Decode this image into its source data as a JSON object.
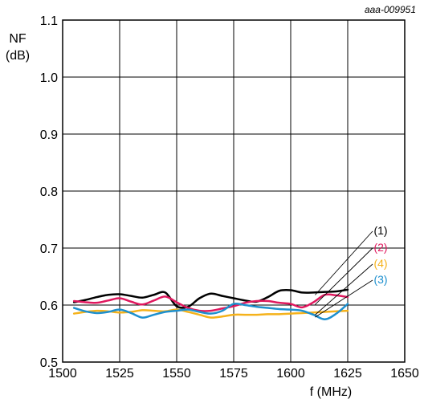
{
  "figure_id": "aaa-009951",
  "chart_data": {
    "type": "line",
    "xlabel": "f (MHz)",
    "ylabel_line1": "NF",
    "ylabel_line2": "(dB)",
    "xlim": [
      1500,
      1650
    ],
    "ylim": [
      0.5,
      1.1
    ],
    "x_ticks": [
      "1500",
      "1525",
      "1550",
      "1575",
      "1600",
      "1625",
      "1650"
    ],
    "y_ticks": [
      "0.5",
      "0.6",
      "0.7",
      "0.8",
      "0.9",
      "1.0",
      "1.1"
    ],
    "x_tick_values": [
      1500,
      1525,
      1550,
      1575,
      1600,
      1625,
      1650
    ],
    "y_tick_values": [
      0.5,
      0.6,
      0.7,
      0.8,
      0.9,
      1.0,
      1.1
    ],
    "grid": true,
    "series": [
      {
        "name": "(1)",
        "color": "#000000",
        "x": [
          1505,
          1510,
          1515,
          1520,
          1525,
          1530,
          1535,
          1540,
          1545,
          1550,
          1555,
          1560,
          1565,
          1570,
          1575,
          1580,
          1585,
          1590,
          1595,
          1600,
          1605,
          1610,
          1615,
          1620,
          1625
        ],
        "y": [
          0.605,
          0.609,
          0.614,
          0.618,
          0.619,
          0.616,
          0.613,
          0.618,
          0.622,
          0.598,
          0.597,
          0.612,
          0.62,
          0.616,
          0.612,
          0.608,
          0.606,
          0.614,
          0.625,
          0.626,
          0.622,
          0.622,
          0.623,
          0.624,
          0.627
        ]
      },
      {
        "name": "(2)",
        "color": "#e0185e",
        "x": [
          1505,
          1510,
          1515,
          1520,
          1525,
          1530,
          1535,
          1540,
          1545,
          1550,
          1555,
          1560,
          1565,
          1570,
          1575,
          1580,
          1585,
          1590,
          1595,
          1600,
          1605,
          1610,
          1615,
          1620,
          1625
        ],
        "y": [
          0.607,
          0.605,
          0.604,
          0.608,
          0.612,
          0.606,
          0.601,
          0.608,
          0.615,
          0.605,
          0.595,
          0.59,
          0.59,
          0.594,
          0.598,
          0.604,
          0.607,
          0.607,
          0.604,
          0.602,
          0.596,
          0.605,
          0.618,
          0.617,
          0.614
        ]
      },
      {
        "name": "(4)",
        "color": "#f5b21b",
        "x": [
          1505,
          1510,
          1515,
          1520,
          1525,
          1530,
          1535,
          1540,
          1545,
          1550,
          1555,
          1560,
          1565,
          1570,
          1575,
          1580,
          1585,
          1590,
          1595,
          1600,
          1605,
          1610,
          1615,
          1620,
          1625
        ],
        "y": [
          0.585,
          0.588,
          0.59,
          0.589,
          0.587,
          0.588,
          0.591,
          0.59,
          0.589,
          0.592,
          0.588,
          0.583,
          0.578,
          0.58,
          0.583,
          0.583,
          0.583,
          0.584,
          0.584,
          0.585,
          0.586,
          0.587,
          0.588,
          0.589,
          0.59
        ]
      },
      {
        "name": "(3)",
        "color": "#1e90cf",
        "x": [
          1505,
          1510,
          1515,
          1520,
          1525,
          1530,
          1535,
          1540,
          1545,
          1550,
          1555,
          1560,
          1565,
          1570,
          1575,
          1580,
          1585,
          1590,
          1595,
          1600,
          1605,
          1610,
          1615,
          1620,
          1625
        ],
        "y": [
          0.595,
          0.589,
          0.586,
          0.588,
          0.592,
          0.586,
          0.578,
          0.583,
          0.588,
          0.59,
          0.592,
          0.588,
          0.585,
          0.59,
          0.602,
          0.6,
          0.597,
          0.595,
          0.593,
          0.592,
          0.59,
          0.583,
          0.575,
          0.585,
          0.602
        ]
      }
    ]
  }
}
